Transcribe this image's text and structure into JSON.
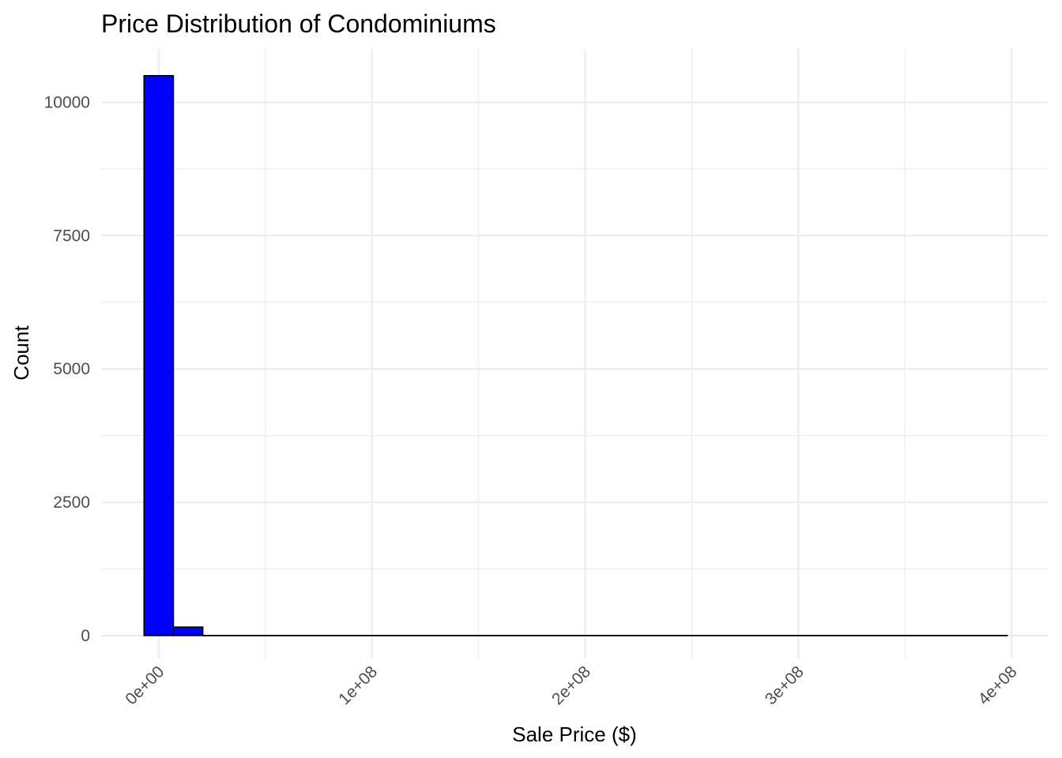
{
  "chart_data": {
    "type": "bar",
    "title": "Price Distribution of Condominiums",
    "xlabel": "Sale Price ($)",
    "ylabel": "Count",
    "x_ticks": [
      {
        "value": 0,
        "label": "0e+00"
      },
      {
        "value": 100000000,
        "label": "1e+08"
      },
      {
        "value": 200000000,
        "label": "2e+08"
      },
      {
        "value": 300000000,
        "label": "3e+08"
      },
      {
        "value": 400000000,
        "label": "4e+08"
      }
    ],
    "y_ticks": [
      {
        "value": 0,
        "label": "0"
      },
      {
        "value": 2500,
        "label": "2500"
      },
      {
        "value": 5000,
        "label": "5000"
      },
      {
        "value": 7500,
        "label": "7500"
      },
      {
        "value": 10000,
        "label": "10000"
      }
    ],
    "xlim": [
      -27000000,
      417000000
    ],
    "ylim": [
      -430,
      11000
    ],
    "bin_width": 13793103,
    "bins": [
      {
        "x0": -6896552,
        "x1": 6896552,
        "count": 10500
      },
      {
        "x0": 6896552,
        "x1": 20689655,
        "count": 160
      },
      {
        "x0": 20689655,
        "x1": 398275862,
        "count": 0
      }
    ],
    "bar_fill": "#0000ff",
    "bar_stroke": "#000000",
    "grid": true,
    "legend": "none"
  }
}
